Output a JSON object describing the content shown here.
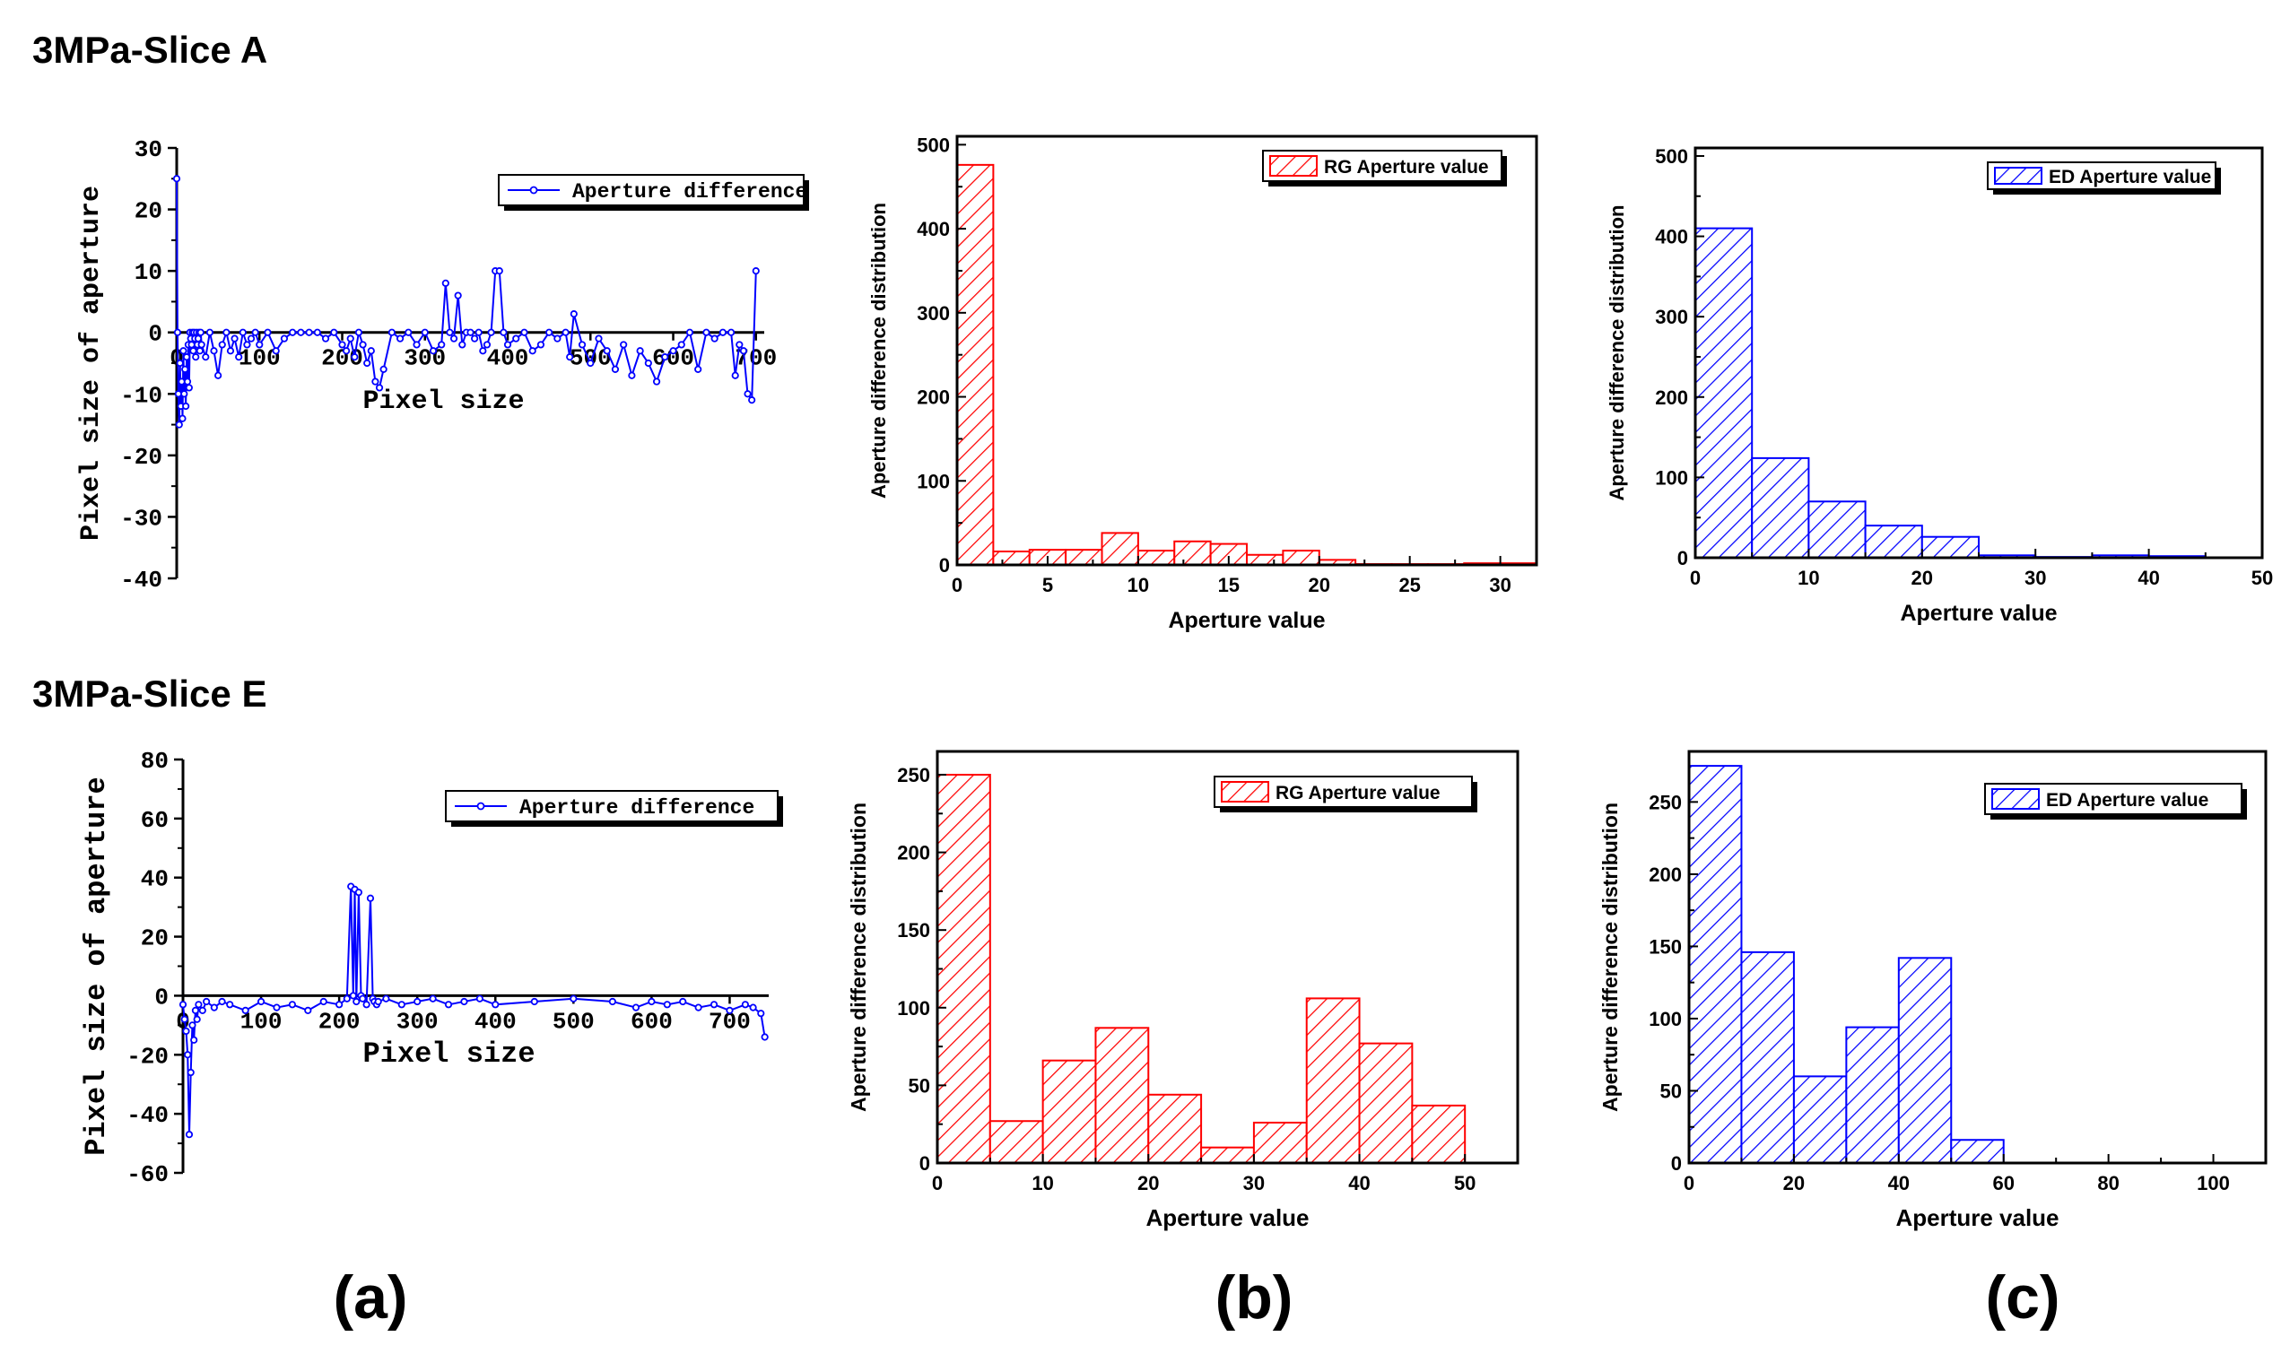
{
  "row_labels": [
    "3MPa-Slice A",
    "3MPa-Slice E"
  ],
  "panel_labels": [
    "(a)",
    "(b)",
    "(c)"
  ],
  "colors": {
    "red": "#ff0000",
    "blue": "#0000ff",
    "axis": "#000000"
  },
  "chart_data": [
    {
      "id": "a-top",
      "type": "line",
      "style": "line",
      "xlabel": "Pixel size",
      "ylabel": "Pixel size of aperture",
      "xlim": [
        0,
        710
      ],
      "ylim": [
        -40,
        30
      ],
      "xticks": [
        0,
        100,
        200,
        300,
        400,
        500,
        600,
        700
      ],
      "xticklabels": [
        "0",
        "100",
        "200",
        "300",
        "400",
        "500",
        "600",
        "700"
      ],
      "yticks": [
        -40,
        -30,
        -20,
        -10,
        0,
        10,
        20,
        30
      ],
      "legend": "Aperture difference",
      "legend_loc": "top-right",
      "series": [
        {
          "name": "Aperture difference",
          "x": [
            0,
            1,
            2,
            3,
            4,
            5,
            6,
            7,
            8,
            9,
            10,
            11,
            12,
            13,
            14,
            15,
            16,
            17,
            18,
            19,
            20,
            21,
            22,
            23,
            24,
            25,
            26,
            27,
            28,
            29,
            30,
            35,
            40,
            45,
            50,
            55,
            60,
            65,
            70,
            75,
            80,
            85,
            90,
            95,
            100,
            110,
            120,
            130,
            140,
            150,
            160,
            170,
            180,
            190,
            200,
            205,
            210,
            215,
            220,
            225,
            230,
            235,
            240,
            245,
            250,
            260,
            270,
            280,
            290,
            300,
            310,
            320,
            325,
            330,
            335,
            340,
            345,
            350,
            355,
            360,
            365,
            370,
            375,
            380,
            385,
            390,
            395,
            400,
            410,
            420,
            430,
            440,
            450,
            460,
            470,
            475,
            480,
            490,
            500,
            510,
            520,
            530,
            540,
            550,
            560,
            570,
            580,
            590,
            600,
            610,
            620,
            630,
            640,
            650,
            660,
            670,
            675,
            680,
            685,
            690,
            695,
            700
          ],
          "y": [
            25,
            0,
            -10,
            -15,
            -5,
            -12,
            -8,
            -14,
            -3,
            -10,
            -6,
            -12,
            -4,
            -8,
            -2,
            -9,
            0,
            -1,
            -2,
            0,
            -3,
            0,
            -1,
            -4,
            0,
            -2,
            -1,
            0,
            -3,
            0,
            -2,
            -4,
            0,
            -3,
            -7,
            -2,
            0,
            -3,
            -1,
            -4,
            0,
            -2,
            -1,
            0,
            -2,
            0,
            -3,
            -1,
            0,
            0,
            0,
            0,
            -1,
            0,
            -2,
            -3,
            -1,
            -4,
            0,
            -2,
            -5,
            -3,
            -8,
            -9,
            -6,
            0,
            -1,
            0,
            -2,
            0,
            -3,
            -2,
            8,
            0,
            -1,
            6,
            -2,
            0,
            0,
            -1,
            0,
            -3,
            -2,
            0,
            10,
            10,
            0,
            -2,
            -1,
            0,
            -3,
            -2,
            0,
            -1,
            0,
            -4,
            3,
            -2,
            -5,
            -1,
            -3,
            -6,
            -2,
            -7,
            -3,
            -5,
            -8,
            -4,
            -3,
            -2,
            0,
            -6,
            0,
            -1,
            0,
            0,
            -7,
            -2,
            -3,
            -10,
            -11,
            10
          ]
        }
      ]
    },
    {
      "id": "b-top",
      "type": "bar",
      "xlabel": "Aperture value",
      "ylabel": "Aperture difference distribution",
      "xlim": [
        0,
        32
      ],
      "ylim": [
        0,
        510
      ],
      "xticks": [
        0,
        5,
        10,
        15,
        20,
        25,
        30
      ],
      "yticks": [
        0,
        100,
        200,
        300,
        400,
        500
      ],
      "legend": "RG Aperture value",
      "legend_loc": "top-right",
      "bins": [
        [
          0,
          2,
          476
        ],
        [
          2,
          4,
          16
        ],
        [
          4,
          6,
          18
        ],
        [
          6,
          8,
          18
        ],
        [
          8,
          10,
          38
        ],
        [
          10,
          12,
          17
        ],
        [
          12,
          14,
          28
        ],
        [
          14,
          16,
          25
        ],
        [
          16,
          18,
          12
        ],
        [
          18,
          20,
          17
        ],
        [
          20,
          22,
          6
        ],
        [
          22,
          24,
          1
        ],
        [
          24,
          26,
          1
        ],
        [
          26,
          28,
          1
        ],
        [
          28,
          30,
          2
        ],
        [
          30,
          32,
          2
        ]
      ]
    },
    {
      "id": "c-top",
      "type": "bar",
      "xlabel": "Aperture value",
      "ylabel": "Aperture difference distribution",
      "xlim": [
        0,
        50
      ],
      "ylim": [
        0,
        510
      ],
      "xticks": [
        0,
        10,
        20,
        30,
        40,
        50
      ],
      "yticks": [
        0,
        100,
        200,
        300,
        400,
        500
      ],
      "legend": "ED Aperture value",
      "legend_loc": "top-right",
      "bins": [
        [
          0,
          5,
          410
        ],
        [
          5,
          10,
          124
        ],
        [
          10,
          15,
          70
        ],
        [
          15,
          20,
          40
        ],
        [
          20,
          25,
          26
        ],
        [
          25,
          30,
          3
        ],
        [
          30,
          35,
          1
        ],
        [
          35,
          40,
          3
        ],
        [
          40,
          45,
          2
        ]
      ]
    },
    {
      "id": "a-bottom",
      "type": "line",
      "style": "line",
      "xlabel": "Pixel size",
      "ylabel": "Pixel size of aperture",
      "xlim": [
        0,
        750
      ],
      "ylim": [
        -60,
        80
      ],
      "xticks": [
        0,
        100,
        200,
        300,
        400,
        500,
        600,
        700
      ],
      "xticklabels": [
        "0",
        "100",
        "200",
        "300",
        "400",
        "500",
        "600",
        "700"
      ],
      "yticks": [
        -60,
        -40,
        -20,
        0,
        20,
        40,
        60,
        80
      ],
      "legend": "Aperture difference",
      "legend_loc": "top-right",
      "series": [
        {
          "name": "Aperture difference",
          "x": [
            0,
            2,
            4,
            6,
            8,
            10,
            12,
            14,
            16,
            18,
            20,
            25,
            30,
            40,
            50,
            60,
            80,
            100,
            120,
            140,
            160,
            180,
            200,
            210,
            215,
            218,
            220,
            222,
            225,
            228,
            230,
            235,
            240,
            243,
            245,
            248,
            250,
            260,
            280,
            300,
            320,
            340,
            360,
            380,
            400,
            450,
            500,
            550,
            580,
            600,
            620,
            640,
            660,
            680,
            700,
            720,
            730,
            740,
            745
          ],
          "y": [
            -3,
            -8,
            -12,
            -20,
            -47,
            -26,
            -10,
            -15,
            -5,
            -8,
            -3,
            -5,
            -2,
            -4,
            -2,
            -3,
            -5,
            -2,
            -4,
            -3,
            -5,
            -2,
            -3,
            -1,
            37,
            0,
            36,
            -2,
            35,
            0,
            -1,
            -3,
            33,
            -1,
            -2,
            -3,
            -2,
            -1,
            -3,
            -2,
            -1,
            -3,
            -2,
            -1,
            -3,
            -2,
            -1,
            -2,
            -4,
            -2,
            -3,
            -2,
            -4,
            -3,
            -5,
            -3,
            -4,
            -6,
            -14
          ]
        }
      ]
    },
    {
      "id": "b-bottom",
      "type": "bar",
      "xlabel": "Aperture value",
      "ylabel": "Aperture difference distribution",
      "xlim": [
        0,
        55
      ],
      "ylim": [
        0,
        265
      ],
      "xticks": [
        0,
        10,
        20,
        30,
        40,
        50
      ],
      "yticks": [
        0,
        50,
        100,
        150,
        200,
        250
      ],
      "legend": "RG Aperture value",
      "legend_loc": "top-right",
      "bins": [
        [
          0,
          5,
          250
        ],
        [
          5,
          10,
          27
        ],
        [
          10,
          15,
          66
        ],
        [
          15,
          20,
          87
        ],
        [
          20,
          25,
          44
        ],
        [
          25,
          30,
          10
        ],
        [
          30,
          35,
          26
        ],
        [
          35,
          40,
          106
        ],
        [
          40,
          45,
          77
        ],
        [
          45,
          50,
          37
        ]
      ]
    },
    {
      "id": "c-bottom",
      "type": "bar",
      "xlabel": "Aperture value",
      "ylabel": "Aperture difference distribution",
      "xlim": [
        0,
        110
      ],
      "ylim": [
        0,
        285
      ],
      "xticks": [
        0,
        20,
        40,
        60,
        80,
        100
      ],
      "yticks": [
        0,
        50,
        100,
        150,
        200,
        250
      ],
      "legend": "ED Aperture value",
      "legend_loc": "top-right",
      "bins": [
        [
          0,
          10,
          275
        ],
        [
          10,
          20,
          146
        ],
        [
          20,
          30,
          60
        ],
        [
          30,
          40,
          94
        ],
        [
          40,
          50,
          142
        ],
        [
          50,
          60,
          16
        ]
      ]
    }
  ]
}
